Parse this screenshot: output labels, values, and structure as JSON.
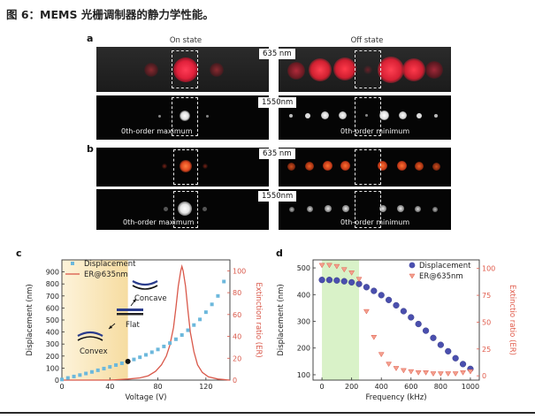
{
  "figure_title": "图 6：MEMS 光栅调制器的静力学性能。",
  "panels": {
    "a": {
      "label": "a",
      "left_title": "On state",
      "right_title": "Off state",
      "wl1": "635 nm",
      "wl2": "1550nm",
      "left_caption": "0th-order maximum",
      "right_caption": "0th-order minimum"
    },
    "b": {
      "label": "b",
      "wl1": "635 nm",
      "wl2": "1550nm",
      "left_caption": "0th-order maximum",
      "right_caption": "0th-order minimum"
    },
    "c": {
      "label": "c",
      "legend_displacement": "Displacement",
      "legend_er": "ER@635nm",
      "ann_concave": "Concave",
      "ann_flat": "Flat",
      "ann_convex": "Convex"
    },
    "d": {
      "label": "d",
      "legend_displacement": "Displacement",
      "legend_er": "ER@635nm"
    }
  },
  "colors": {
    "displacement_c": "#6cb8dc",
    "er_c": "#d9584a",
    "displacement_d": "#4a4fae",
    "er_d": "#e05a4a",
    "c_band": "#f6dca0",
    "d_band": "#d9f2c8"
  },
  "chart_data": [
    {
      "type": "scatter",
      "panel": "c",
      "xlabel": "Voltage (V)",
      "ylabel": "Displacement (nm)",
      "ylabel_right": "Extinction ratio (ER)",
      "xlim": [
        0,
        140
      ],
      "ylim": [
        0,
        1000
      ],
      "ylim_right": [
        0,
        110
      ],
      "xticks": [
        0,
        40,
        80,
        120
      ],
      "yticks": [
        0,
        100,
        200,
        300,
        400,
        500,
        600,
        700,
        800,
        900
      ],
      "yticks_right": [
        0,
        20,
        40,
        60,
        80,
        100
      ],
      "grid": false,
      "legend_placement": "top-left",
      "shaded_x_range": [
        0,
        55
      ],
      "series": [
        {
          "name": "Displacement",
          "axis": "left",
          "marker": "square",
          "x": [
            0,
            5,
            10,
            15,
            20,
            25,
            30,
            35,
            40,
            45,
            50,
            55,
            60,
            65,
            70,
            75,
            80,
            85,
            90,
            95,
            100,
            105,
            110,
            115,
            120,
            125,
            130,
            135
          ],
          "y": [
            5,
            18,
            30,
            42,
            55,
            68,
            82,
            96,
            110,
            125,
            140,
            155,
            172,
            190,
            210,
            232,
            255,
            280,
            308,
            340,
            375,
            415,
            458,
            505,
            565,
            630,
            700,
            820
          ]
        },
        {
          "name": "ER@635nm",
          "axis": "right",
          "marker": "line",
          "x": [
            0,
            40,
            55,
            65,
            72,
            78,
            83,
            87,
            90,
            93,
            95,
            97,
            99,
            100,
            101,
            103,
            105,
            107,
            110,
            113,
            117,
            122,
            130,
            140
          ],
          "y": [
            0,
            0,
            1,
            2,
            4,
            8,
            14,
            22,
            32,
            48,
            66,
            86,
            100,
            104,
            100,
            86,
            64,
            44,
            26,
            14,
            7,
            3,
            1,
            0
          ]
        }
      ],
      "marked_point": {
        "x": 55,
        "y": 155
      }
    },
    {
      "type": "scatter",
      "panel": "d",
      "xlabel": "Frequency (kHz)",
      "ylabel": "Displacement (nm)",
      "ylabel_right": "Extinctio ratio (ER)",
      "xlim": [
        -60,
        1060
      ],
      "ylim": [
        80,
        530
      ],
      "ylim_right": [
        -4,
        108
      ],
      "xticks": [
        0,
        200,
        400,
        600,
        800,
        1000
      ],
      "yticks": [
        100,
        200,
        300,
        400,
        500
      ],
      "yticks_right": [
        0,
        25,
        50,
        75,
        100
      ],
      "grid": false,
      "legend_placement": "top-right",
      "shaded_x_range": [
        0,
        250
      ],
      "series": [
        {
          "name": "Displacement",
          "axis": "left",
          "marker": "circle",
          "x": [
            0,
            50,
            100,
            150,
            200,
            250,
            300,
            350,
            400,
            450,
            500,
            550,
            600,
            650,
            700,
            750,
            800,
            850,
            900,
            950,
            1000
          ],
          "y": [
            455,
            455,
            453,
            450,
            446,
            440,
            428,
            414,
            398,
            380,
            360,
            338,
            315,
            290,
            265,
            238,
            212,
            188,
            162,
            140,
            122
          ]
        },
        {
          "name": "ER@635nm",
          "axis": "right",
          "marker": "triangle-down",
          "x": [
            0,
            50,
            100,
            150,
            200,
            250,
            300,
            350,
            400,
            450,
            500,
            550,
            600,
            650,
            700,
            750,
            800,
            850,
            900,
            950,
            1000
          ],
          "y": [
            103,
            103,
            102,
            99,
            96,
            90,
            60,
            36,
            20,
            11,
            7,
            5,
            4,
            3,
            3,
            2,
            2,
            2,
            2,
            3,
            4
          ]
        }
      ]
    }
  ]
}
